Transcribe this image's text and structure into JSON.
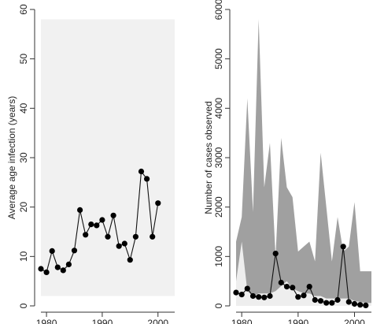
{
  "chart_data": [
    {
      "type": "line",
      "ylabel": "Average age infection (years)",
      "xlabel": "",
      "xlim": [
        1979,
        2003
      ],
      "ylim": [
        0,
        60
      ],
      "xticks": [
        1980,
        1990,
        2000
      ],
      "yticks": [
        0,
        10,
        20,
        30,
        40,
        50,
        60
      ],
      "grid": false,
      "series": [
        {
          "x": [
            1979,
            1980,
            1981,
            1982,
            1983,
            1984,
            1985,
            1986,
            1987,
            1988,
            1989,
            1990,
            1991,
            1992,
            1993,
            1994,
            1995,
            1996,
            1997,
            1998,
            1999,
            2000,
            2001,
            2002
          ],
          "values": [
            7.5,
            6.8,
            11.1,
            7.8,
            7.2,
            8.4,
            11.2,
            19.4,
            14.4,
            16.5,
            16.3,
            17.4,
            14.0,
            18.3,
            12.1,
            12.6,
            9.3,
            14.0,
            27.2,
            25.7,
            14.0,
            20.8,
            null,
            null
          ]
        }
      ],
      "bands": [
        {
          "color": "#e6e6e6",
          "x": [
            1979,
            1981,
            1983,
            1985,
            1987,
            1989,
            1991,
            1993,
            1995,
            1997,
            1999,
            2001,
            2003
          ],
          "lower": [
            6,
            5.5,
            6,
            6.5,
            7.5,
            8,
            9,
            9.5,
            10,
            11,
            11,
            12,
            12
          ],
          "upper": [
            12,
            13,
            16,
            20,
            24,
            25,
            26,
            27,
            28,
            29,
            29,
            29,
            29
          ]
        },
        {
          "color": "#f1f1f1",
          "x": [
            1979,
            1981,
            1983,
            1985,
            1987,
            1989,
            1991,
            1993,
            1995,
            1997,
            1999,
            2001,
            2003
          ],
          "lower": [
            2,
            2,
            2,
            2,
            2,
            2,
            2,
            2,
            2,
            2,
            2,
            2,
            2
          ],
          "upper": [
            58,
            58,
            58,
            58,
            58,
            58,
            58,
            58,
            58,
            58,
            58,
            58,
            58
          ]
        }
      ]
    },
    {
      "type": "line",
      "ylabel": "Number of cases observed",
      "xlabel": "",
      "xlim": [
        1979,
        2003
      ],
      "ylim": [
        0,
        6000
      ],
      "xticks": [
        1980,
        1990,
        2000
      ],
      "yticks": [
        0,
        1000,
        2000,
        3000,
        4000,
        5000,
        6000
      ],
      "grid": false,
      "series": [
        {
          "x": [
            1979,
            1980,
            1981,
            1982,
            1983,
            1984,
            1985,
            1986,
            1987,
            1988,
            1989,
            1990,
            1991,
            1992,
            1993,
            1994,
            1995,
            1996,
            1997,
            1998,
            1999,
            2000,
            2001,
            2002
          ],
          "values": [
            270,
            230,
            350,
            200,
            180,
            170,
            200,
            1060,
            470,
            390,
            370,
            180,
            210,
            390,
            120,
            100,
            60,
            60,
            120,
            1200,
            80,
            40,
            20,
            10
          ]
        }
      ],
      "bands": [
        {
          "color": "#a0a0a0",
          "x": [
            1979,
            1980,
            1981,
            1982,
            1983,
            1984,
            1985,
            1986,
            1987,
            1988,
            1989,
            1990,
            1991,
            1992,
            1993,
            1994,
            1995,
            1996,
            1997,
            1998,
            1999,
            2000,
            2001,
            2002,
            2003
          ],
          "lower": [
            0,
            0,
            0,
            0,
            0,
            0,
            0,
            0,
            0,
            0,
            0,
            0,
            0,
            0,
            0,
            0,
            0,
            0,
            0,
            0,
            0,
            0,
            0,
            0,
            0
          ],
          "upper": [
            1300,
            1800,
            4200,
            1900,
            5800,
            2400,
            3300,
            1000,
            3400,
            2400,
            2200,
            1100,
            1200,
            1300,
            900,
            3100,
            2000,
            900,
            1800,
            1100,
            1200,
            2100,
            700,
            700,
            700
          ]
        },
        {
          "color": "#eeeeee",
          "x": [
            1979,
            1980,
            1981,
            1982,
            1983,
            1984,
            1985,
            1986,
            1987,
            1988,
            1989,
            1990,
            1991,
            1992,
            1993,
            1994,
            1995,
            1996,
            1997,
            1998,
            1999,
            2000,
            2001,
            2002,
            2003
          ],
          "lower": [
            0,
            0,
            0,
            0,
            0,
            0,
            0,
            0,
            0,
            0,
            0,
            0,
            0,
            0,
            0,
            0,
            0,
            0,
            0,
            0,
            0,
            0,
            0,
            0,
            0
          ],
          "upper": [
            500,
            1300,
            300,
            200,
            250,
            250,
            250,
            300,
            400,
            500,
            350,
            300,
            250,
            250,
            200,
            200,
            150,
            150,
            150,
            150,
            150,
            100,
            80,
            60,
            60
          ]
        }
      ]
    }
  ]
}
